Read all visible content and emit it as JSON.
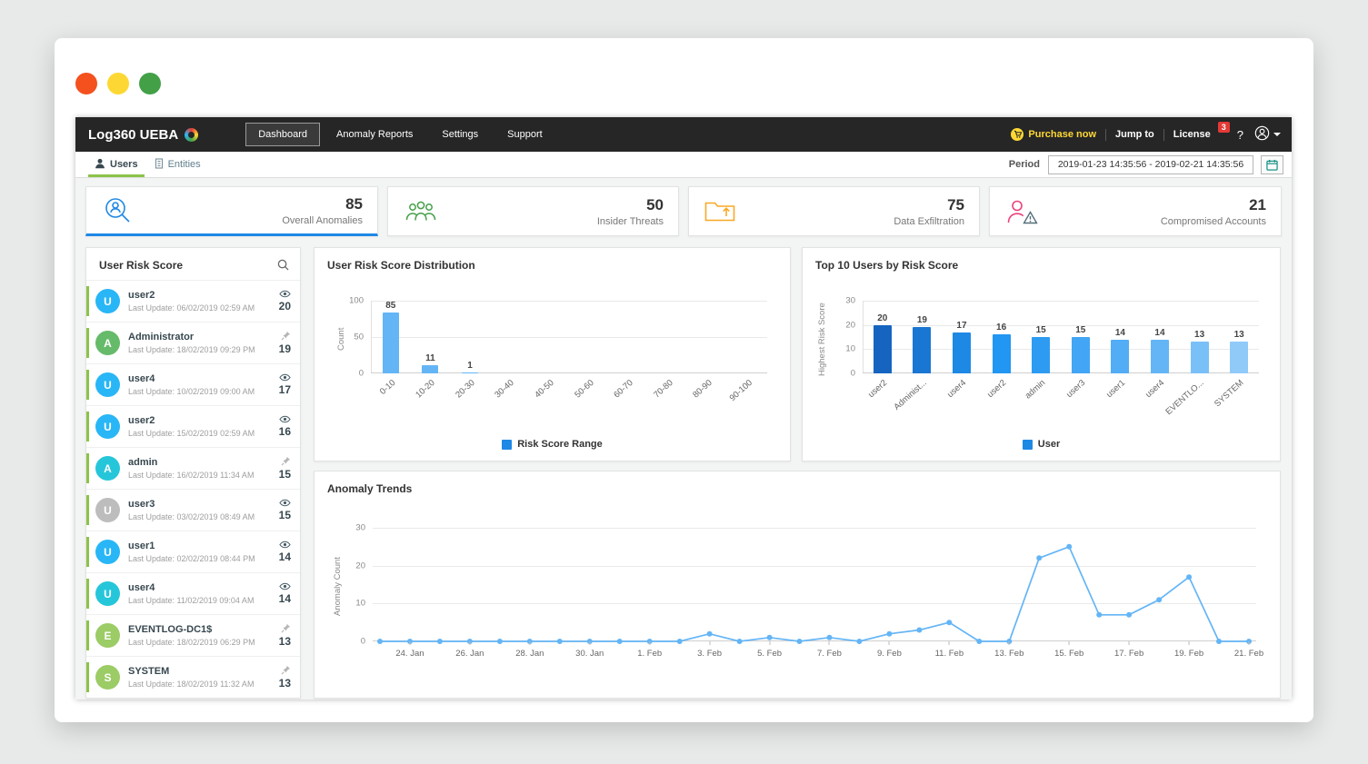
{
  "colors": {
    "accent_green": "#8bc34a",
    "active_blue": "#1e88e5",
    "navbar_bg": "#262626",
    "purchase_yellow": "#fdd835"
  },
  "navbar": {
    "logo": "Log360 UEBA",
    "items": [
      {
        "label": "Dashboard",
        "active": true
      },
      {
        "label": "Anomaly Reports",
        "active": false
      },
      {
        "label": "Settings",
        "active": false
      },
      {
        "label": "Support",
        "active": false
      }
    ],
    "purchase_now": "Purchase now",
    "jump_to": "Jump to",
    "license": "License",
    "notification_count": "3",
    "help": "?"
  },
  "subbar": {
    "tabs": [
      {
        "label": "Users",
        "active": true
      },
      {
        "label": "Entities",
        "active": false
      }
    ],
    "period_label": "Period",
    "period_value": "2019-01-23 14:35:56 - 2019-02-21 14:35:56"
  },
  "stat_cards": [
    {
      "value": "85",
      "label": "Overall Anomalies",
      "icon": "anomaly-search-icon",
      "color": "#1e88e5",
      "active": true
    },
    {
      "value": "50",
      "label": "Insider Threats",
      "icon": "insider-threats-icon",
      "color": "#43a047",
      "active": false
    },
    {
      "value": "75",
      "label": "Data Exfiltration",
      "icon": "data-exfiltration-icon",
      "color": "#f9a825",
      "active": false
    },
    {
      "value": "21",
      "label": "Compromised Accounts",
      "icon": "compromised-account-icon",
      "color": "#ec407a",
      "active": false
    }
  ],
  "user_risk_list": {
    "title": "User Risk Score",
    "items": [
      {
        "initial": "U",
        "avatar_color": "#29b6f6",
        "name": "user2",
        "last_update": "Last Update: 06/02/2019 02:59 AM",
        "score": "20",
        "icon": "eye"
      },
      {
        "initial": "A",
        "avatar_color": "#66bb6a",
        "name": "Administrator",
        "last_update": "Last Update: 18/02/2019 09:29 PM",
        "score": "19",
        "icon": "pin"
      },
      {
        "initial": "U",
        "avatar_color": "#29b6f6",
        "name": "user4",
        "last_update": "Last Update: 10/02/2019 09:00 AM",
        "score": "17",
        "icon": "eye"
      },
      {
        "initial": "U",
        "avatar_color": "#29b6f6",
        "name": "user2",
        "last_update": "Last Update: 15/02/2019 02:59 AM",
        "score": "16",
        "icon": "eye"
      },
      {
        "initial": "A",
        "avatar_color": "#26c6da",
        "name": "admin",
        "last_update": "Last Update: 16/02/2019 11:34 AM",
        "score": "15",
        "icon": "pin"
      },
      {
        "initial": "U",
        "avatar_color": "#bdbdbd",
        "name": "user3",
        "last_update": "Last Update: 03/02/2019 08:49 AM",
        "score": "15",
        "icon": "eye"
      },
      {
        "initial": "U",
        "avatar_color": "#29b6f6",
        "name": "user1",
        "last_update": "Last Update: 02/02/2019 08:44 PM",
        "score": "14",
        "icon": "eye"
      },
      {
        "initial": "U",
        "avatar_color": "#26c6da",
        "name": "user4",
        "last_update": "Last Update: 11/02/2019 09:04 AM",
        "score": "14",
        "icon": "eye"
      },
      {
        "initial": "E",
        "avatar_color": "#9ccc65",
        "name": "EVENTLOG-DC1$",
        "last_update": "Last Update: 18/02/2019 06:29 PM",
        "score": "13",
        "icon": "pin"
      },
      {
        "initial": "S",
        "avatar_color": "#9ccc65",
        "name": "SYSTEM",
        "last_update": "Last Update: 18/02/2019 11:32 AM",
        "score": "13",
        "icon": "pin"
      }
    ]
  },
  "chart_data": [
    {
      "type": "bar",
      "title": "User Risk Score Distribution",
      "categories": [
        "0-10",
        "10-20",
        "20-30",
        "30-40",
        "40-50",
        "50-60",
        "60-70",
        "70-80",
        "80-90",
        "90-100"
      ],
      "values": [
        85,
        11,
        1,
        0,
        0,
        0,
        0,
        0,
        0,
        0
      ],
      "xlabel": "",
      "ylabel": "Count",
      "yticks": [
        0,
        50,
        100
      ],
      "ylim": [
        0,
        100
      ],
      "legend": "Risk Score Range",
      "legend_position": "bottom",
      "grid": true,
      "bar_color": "#64b5f6"
    },
    {
      "type": "bar",
      "title": "Top 10 Users by Risk Score",
      "categories": [
        "user2",
        "Administ...",
        "user4",
        "user2",
        "admin",
        "user3",
        "user1",
        "user4",
        "EVENTLO...",
        "SYSTEM"
      ],
      "values": [
        20,
        19,
        17,
        16,
        15,
        15,
        14,
        14,
        13,
        13
      ],
      "bar_colors": [
        "#1565c0",
        "#1976d2",
        "#1e88e5",
        "#2196f3",
        "#2e9bf2",
        "#42a5f5",
        "#53adf6",
        "#64b5f6",
        "#7ac0f8",
        "#90caf9"
      ],
      "xlabel": "",
      "ylabel": "Highest Risk Score",
      "yticks": [
        0,
        10,
        20,
        30
      ],
      "ylim": [
        0,
        30
      ],
      "legend": "User",
      "legend_position": "bottom",
      "grid": true
    },
    {
      "type": "line",
      "title": "Anomaly Trends",
      "x": [
        "23. Jan",
        "24. Jan",
        "25. Jan",
        "26. Jan",
        "27. Jan",
        "28. Jan",
        "29. Jan",
        "30. Jan",
        "31. Jan",
        "1. Feb",
        "2. Feb",
        "3. Feb",
        "4. Feb",
        "5. Feb",
        "6. Feb",
        "7. Feb",
        "8. Feb",
        "9. Feb",
        "10. Feb",
        "11. Feb",
        "12. Feb",
        "13. Feb",
        "14. Feb",
        "15. Feb",
        "16. Feb",
        "17. Feb",
        "18. Feb",
        "19. Feb",
        "20. Feb",
        "21. Feb"
      ],
      "values": [
        0,
        0,
        0,
        0,
        0,
        0,
        0,
        0,
        0,
        0,
        0,
        2,
        0,
        1,
        0,
        1,
        0,
        2,
        3,
        5,
        0,
        0,
        22,
        25,
        7,
        7,
        11,
        17,
        0,
        0
      ],
      "x_tick_labels": [
        "24. Jan",
        "26. Jan",
        "28. Jan",
        "30. Jan",
        "1. Feb",
        "3. Feb",
        "5. Feb",
        "7. Feb",
        "9. Feb",
        "11. Feb",
        "13. Feb",
        "15. Feb",
        "17. Feb",
        "19. Feb",
        "21. Feb"
      ],
      "xlabel": "",
      "ylabel": "Anomaly Count",
      "yticks": [
        0,
        10,
        20,
        30
      ],
      "ylim": [
        0,
        30
      ],
      "grid": true,
      "line_color": "#64b5f6"
    }
  ]
}
